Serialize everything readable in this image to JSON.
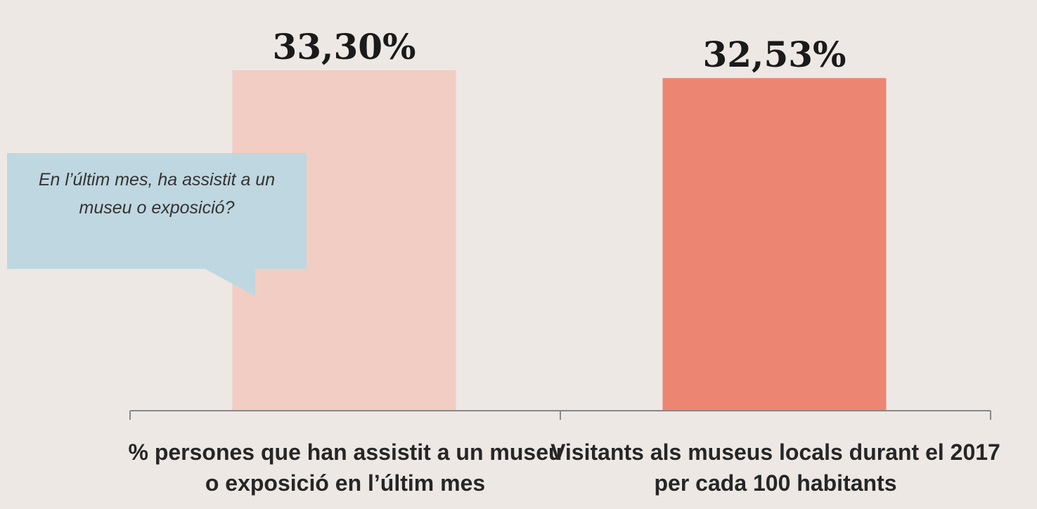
{
  "chart_data": {
    "type": "bar",
    "categories": [
      "% persones que han assistit a un museu o exposició en l’últim mes",
      "Visitants als museus locals durant el 2017 per cada 100 habitants"
    ],
    "values": [
      33.3,
      32.53
    ],
    "value_labels": [
      "33,30%",
      "32,53%"
    ],
    "colors": [
      "#f2cdc4",
      "#ec8672"
    ],
    "ylim": [
      0,
      40
    ],
    "annotation": "En l’últim mes, ha assistit a un museu o exposició?"
  }
}
